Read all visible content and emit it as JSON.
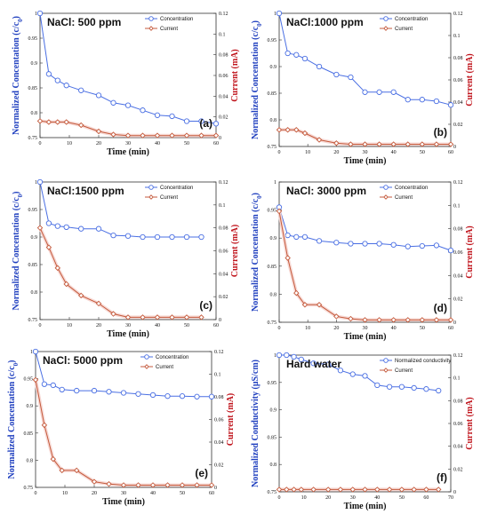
{
  "colors": {
    "concentration": "#4a6fe3",
    "current": "#c45a3c",
    "current_fill": "#f6d6d2",
    "frame": "#333333"
  },
  "chart_data": [
    {
      "type": "line",
      "panel_label": "(a)",
      "title": "NaCl: 500 ppm",
      "xlabel": "Time (min)",
      "ylabel_left": "Normalized Concentation (c/c",
      "ylabel_left_sub": "0",
      "ylabel_right": "Current (mA)",
      "xlim": [
        0,
        60
      ],
      "xticks": [
        0,
        10,
        20,
        30,
        40,
        50,
        60
      ],
      "ylim": [
        0.75,
        1.0
      ],
      "yticks": [
        0.75,
        0.8,
        0.85,
        0.9,
        0.95,
        1
      ],
      "y2lim": [
        0,
        0.12
      ],
      "y2ticks": [
        0,
        0.02,
        0.04,
        0.06,
        0.08,
        0.1,
        0.12
      ],
      "series": [
        {
          "name": "Concentration",
          "axis": "left",
          "x": [
            0,
            3,
            6,
            9,
            14,
            20,
            25,
            30,
            35,
            40,
            45,
            50,
            55,
            60
          ],
          "y": [
            1.0,
            0.878,
            0.865,
            0.855,
            0.845,
            0.835,
            0.82,
            0.815,
            0.805,
            0.795,
            0.793,
            0.783,
            0.783,
            0.778
          ]
        },
        {
          "name": "Current",
          "axis": "right",
          "x": [
            0,
            3,
            6,
            9,
            14,
            20,
            25,
            30,
            35,
            40,
            45,
            50,
            55,
            60
          ],
          "y": [
            0.016,
            0.015,
            0.015,
            0.015,
            0.012,
            0.006,
            0.003,
            0.002,
            0.002,
            0.002,
            0.002,
            0.002,
            0.002,
            0.002
          ]
        }
      ]
    },
    {
      "type": "line",
      "panel_label": "(b)",
      "title": "NaCl:1000 ppm",
      "xlabel": "Time (min)",
      "ylabel_left": "Normalized Concentation (c/c",
      "ylabel_left_sub": "0",
      "ylabel_right": "Current (mA)",
      "xlim": [
        0,
        60
      ],
      "xticks": [
        0,
        10,
        20,
        30,
        40,
        50,
        60
      ],
      "ylim": [
        0.75,
        1.0
      ],
      "yticks": [
        0.75,
        0.8,
        0.85,
        0.9,
        0.95,
        1
      ],
      "y2lim": [
        0,
        0.12
      ],
      "y2ticks": [
        0,
        0.02,
        0.04,
        0.06,
        0.08,
        0.1,
        0.12
      ],
      "series": [
        {
          "name": "Concentration",
          "axis": "left",
          "x": [
            0,
            3,
            6,
            9,
            14,
            20,
            25,
            30,
            35,
            40,
            45,
            50,
            55,
            60
          ],
          "y": [
            1.0,
            0.925,
            0.922,
            0.915,
            0.9,
            0.885,
            0.88,
            0.852,
            0.852,
            0.852,
            0.838,
            0.838,
            0.835,
            0.828
          ]
        },
        {
          "name": "Current",
          "axis": "right",
          "x": [
            0,
            3,
            6,
            9,
            14,
            20,
            25,
            30,
            35,
            40,
            45,
            50,
            55,
            60
          ],
          "y": [
            0.015,
            0.015,
            0.015,
            0.012,
            0.006,
            0.003,
            0.002,
            0.002,
            0.002,
            0.002,
            0.002,
            0.002,
            0.002,
            0.002
          ]
        }
      ]
    },
    {
      "type": "line",
      "panel_label": "(c)",
      "title": "NaCl:1500 ppm",
      "xlabel": "Time (min)",
      "ylabel_left": "Normalized Concentation (c/c",
      "ylabel_left_sub": "0",
      "ylabel_right": "Current (mA)",
      "xlim": [
        0,
        60
      ],
      "xticks": [
        0,
        10,
        20,
        30,
        40,
        50,
        60
      ],
      "ylim": [
        0.75,
        1.0
      ],
      "yticks": [
        0.75,
        0.8,
        0.85,
        0.9,
        0.95,
        1
      ],
      "y2lim": [
        0,
        0.12
      ],
      "y2ticks": [
        0,
        0.02,
        0.04,
        0.06,
        0.08,
        0.1,
        0.12
      ],
      "series": [
        {
          "name": "Concentration",
          "axis": "left",
          "x": [
            0,
            3,
            6,
            9,
            14,
            20,
            25,
            30,
            35,
            40,
            45,
            50,
            55
          ],
          "y": [
            1.0,
            0.925,
            0.92,
            0.918,
            0.915,
            0.915,
            0.903,
            0.902,
            0.9,
            0.9,
            0.9,
            0.9,
            0.9
          ]
        },
        {
          "name": "Current",
          "axis": "right",
          "x": [
            0,
            3,
            6,
            9,
            14,
            20,
            25,
            30,
            35,
            40,
            45,
            50,
            55
          ],
          "y": [
            0.08,
            0.063,
            0.045,
            0.031,
            0.021,
            0.014,
            0.005,
            0.002,
            0.002,
            0.002,
            0.002,
            0.002,
            0.002
          ]
        }
      ]
    },
    {
      "type": "line",
      "panel_label": "(d)",
      "title": "NaCl: 3000 ppm",
      "xlabel": "Time (min)",
      "ylabel_left": "Normalized Concentation (c/c",
      "ylabel_left_sub": "0",
      "ylabel_right": "Current (mA)",
      "xlim": [
        0,
        60
      ],
      "xticks": [
        0,
        10,
        20,
        30,
        40,
        50,
        60
      ],
      "ylim": [
        0.75,
        1.0
      ],
      "yticks": [
        0.75,
        0.8,
        0.85,
        0.9,
        0.95,
        1
      ],
      "y2lim": [
        0,
        0.12
      ],
      "y2ticks": [
        0,
        0.02,
        0.04,
        0.06,
        0.08,
        0.1,
        0.12
      ],
      "series": [
        {
          "name": "Concentration",
          "axis": "left",
          "x": [
            0,
            3,
            6,
            9,
            14,
            20,
            25,
            30,
            35,
            40,
            45,
            50,
            55,
            60
          ],
          "y": [
            0.955,
            0.905,
            0.902,
            0.902,
            0.895,
            0.892,
            0.89,
            0.89,
            0.89,
            0.888,
            0.885,
            0.886,
            0.887,
            0.878
          ]
        },
        {
          "name": "Current",
          "axis": "right",
          "x": [
            0,
            3,
            6,
            9,
            14,
            20,
            25,
            30,
            35,
            40,
            45,
            50,
            55,
            60
          ],
          "y": [
            0.095,
            0.055,
            0.025,
            0.015,
            0.015,
            0.005,
            0.003,
            0.002,
            0.002,
            0.002,
            0.002,
            0.002,
            0.002,
            0.002
          ]
        }
      ]
    },
    {
      "type": "line",
      "panel_label": "(e)",
      "title": "NaCl: 5000 ppm",
      "xlabel": "Time (min)",
      "ylabel_left": "Normalized Concentation (c/c",
      "ylabel_left_sub": "0",
      "ylabel_right": "Current (mA)",
      "xlim": [
        0,
        60
      ],
      "xticks": [
        0,
        10,
        20,
        30,
        40,
        50,
        60
      ],
      "ylim": [
        0.75,
        1.0
      ],
      "yticks": [
        0.75,
        0.8,
        0.85,
        0.9,
        0.95,
        1
      ],
      "y2lim": [
        0,
        0.12
      ],
      "y2ticks": [
        0,
        0.02,
        0.04,
        0.06,
        0.08,
        0.1,
        0.12
      ],
      "series": [
        {
          "name": "Concentration",
          "axis": "left",
          "x": [
            0,
            3,
            6,
            9,
            14,
            20,
            25,
            30,
            35,
            40,
            45,
            50,
            55,
            60
          ],
          "y": [
            1.0,
            0.94,
            0.938,
            0.93,
            0.928,
            0.928,
            0.926,
            0.924,
            0.922,
            0.92,
            0.918,
            0.918,
            0.917,
            0.917
          ]
        },
        {
          "name": "Current",
          "axis": "right",
          "x": [
            0,
            3,
            6,
            9,
            14,
            20,
            25,
            30,
            35,
            40,
            45,
            50,
            55,
            60
          ],
          "y": [
            0.095,
            0.055,
            0.025,
            0.015,
            0.015,
            0.005,
            0.003,
            0.002,
            0.002,
            0.002,
            0.002,
            0.002,
            0.002,
            0.002
          ]
        }
      ]
    },
    {
      "type": "line",
      "panel_label": "(f)",
      "title": "Hard water",
      "xlabel": "Time (min)",
      "ylabel_left": "Normalized Conductivity (μS/cm)",
      "ylabel_left_sub": "",
      "ylabel_right": "Current (mA)",
      "xlim": [
        0,
        70
      ],
      "xticks": [
        0,
        10,
        20,
        30,
        40,
        50,
        60,
        70
      ],
      "ylim": [
        0.75,
        1.0
      ],
      "yticks": [
        0.75,
        0.8,
        0.85,
        0.9,
        0.95,
        1
      ],
      "y2lim": [
        0,
        0.12
      ],
      "y2ticks": [
        0,
        0.02,
        0.04,
        0.06,
        0.08,
        0.1,
        0.12
      ],
      "series": [
        {
          "name": "Normalized conductivity",
          "axis": "left",
          "x": [
            0,
            3,
            6,
            9,
            14,
            20,
            25,
            30,
            35,
            40,
            45,
            50,
            55,
            60,
            65
          ],
          "y": [
            1.0,
            1.0,
            0.997,
            0.992,
            0.985,
            0.983,
            0.972,
            0.965,
            0.962,
            0.945,
            0.942,
            0.942,
            0.94,
            0.938,
            0.935
          ]
        },
        {
          "name": "Current",
          "axis": "right",
          "x": [
            0,
            3,
            6,
            9,
            14,
            20,
            25,
            30,
            35,
            40,
            45,
            50,
            55,
            60,
            65
          ],
          "y": [
            0.002,
            0.002,
            0.002,
            0.002,
            0.002,
            0.002,
            0.002,
            0.002,
            0.002,
            0.002,
            0.002,
            0.002,
            0.002,
            0.002,
            0.002
          ]
        }
      ]
    }
  ]
}
